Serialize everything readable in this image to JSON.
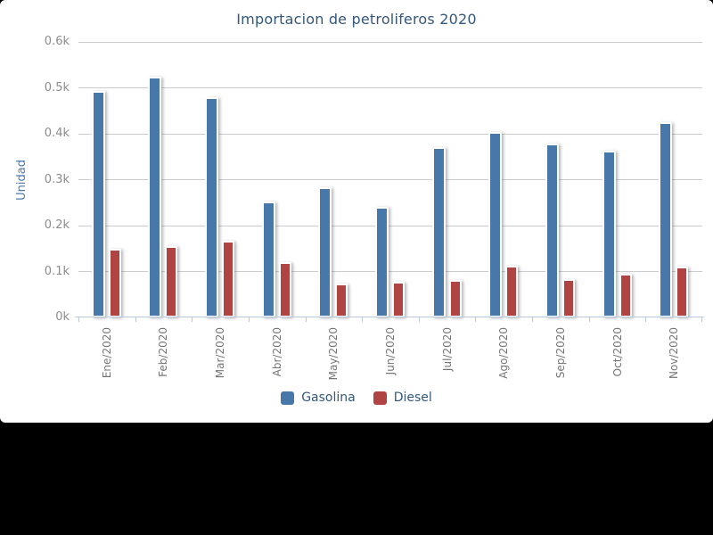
{
  "page": {
    "background_color": "#000000",
    "panel_color": "#ffffff"
  },
  "chart_data": {
    "type": "bar",
    "title": "Importacion de petroliferos 2020",
    "ylabel": "Unidad",
    "xlabel": "",
    "categories": [
      "Ene/2020",
      "Feb/2020",
      "Mar/2020",
      "Abr/2020",
      "May/2020",
      "Jun/2020",
      "Jul/2020",
      "Ago/2020",
      "Sep/2020",
      "Oct/2020",
      "Nov/2020"
    ],
    "series": [
      {
        "name": "Gasolina",
        "color": "#4778A9",
        "values": [
          493,
          525,
          480,
          253,
          284,
          241,
          370,
          403,
          378,
          363,
          426
        ]
      },
      {
        "name": "Diesel",
        "color": "#B04442",
        "values": [
          150,
          155,
          167,
          121,
          73,
          78,
          82,
          113,
          84,
          95,
          110
        ]
      }
    ],
    "ylim": [
      0,
      600
    ],
    "ytick_step": 100,
    "ytick_labels": [
      "0k",
      "0.1k",
      "0.2k",
      "0.3k",
      "0.4k",
      "0.5k",
      "0.6k"
    ],
    "x_label_rotation": -90,
    "grid": true,
    "legend_position": "bottom"
  },
  "colors": {
    "title_text": "#33587c",
    "y_axis_label_text": "#4d7bab",
    "y_tick_text": "#8c8c8c",
    "x_tick_text": "#757575",
    "gridline": "#cccccc",
    "axis_line": "#b7c9de",
    "legend_text": "#33587c"
  }
}
